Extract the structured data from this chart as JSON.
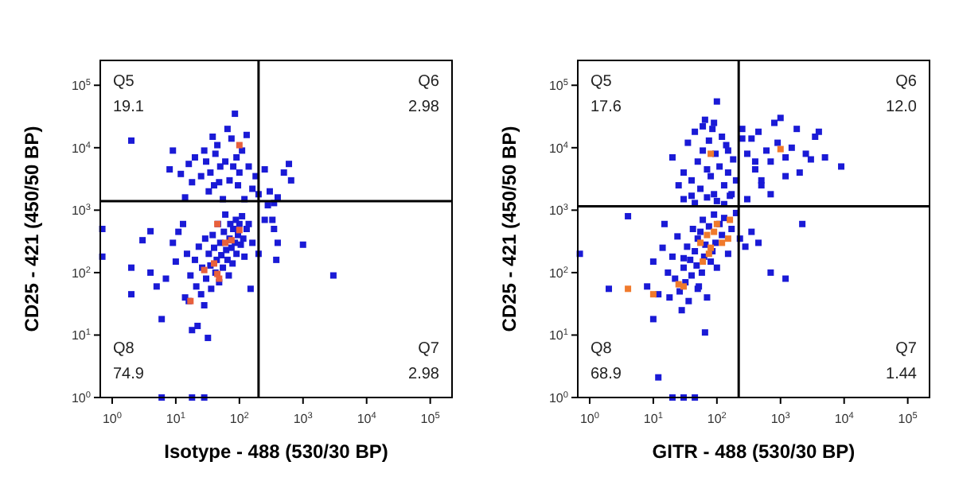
{
  "chart_data": [
    {
      "type": "scatter",
      "xlabel": "Isotype - 488 (530/30 BP)",
      "ylabel": "CD25 - 421 (450/50 BP)",
      "log": "xy",
      "marker": "square",
      "xlim": [
        0.65,
        220000
      ],
      "ylim": [
        1,
        250000
      ],
      "xticks": [
        {
          "value": 1,
          "label": "10$^{0}$"
        },
        {
          "value": 10,
          "label": "10$^{1}$"
        },
        {
          "value": 100,
          "label": "10$^{2}$"
        },
        {
          "value": 1000,
          "label": "10$^{3}$"
        },
        {
          "value": 10000,
          "label": "10$^{4}$"
        },
        {
          "value": 100000,
          "label": "10$^{5}$"
        }
      ],
      "yticks": [
        {
          "value": 1,
          "label": "10$^{0}$"
        },
        {
          "value": 10,
          "label": "10$^{1}$"
        },
        {
          "value": 100,
          "label": "10$^{2}$"
        },
        {
          "value": 1000,
          "label": "10$^{3}$"
        },
        {
          "value": 10000,
          "label": "10$^{4}$"
        },
        {
          "value": 100000,
          "label": "10$^{5}$"
        }
      ],
      "ref_lines": [
        {
          "axis": "x",
          "value": 200,
          "color": "#000000"
        },
        {
          "axis": "y",
          "value": 1400,
          "color": "#000000"
        }
      ],
      "annotations": [
        "Q5",
        "19.1",
        "Q6",
        "2.98",
        "Q8",
        "74.9",
        "Q7",
        "2.98"
      ],
      "series": [
        {
          "color": "#1a1ad6",
          "x": [
            2,
            9,
            8,
            12,
            14,
            16,
            18,
            20,
            25,
            28,
            30,
            33,
            35,
            38,
            40,
            42,
            45,
            48,
            50,
            55,
            60,
            65,
            70,
            75,
            80,
            85,
            90,
            95,
            100,
            110,
            120,
            130,
            140,
            160,
            180,
            200,
            250,
            300,
            350,
            400,
            500,
            600,
            650,
            280,
            330,
            0.7,
            0.7,
            2,
            2,
            3,
            4,
            4,
            5,
            6,
            7,
            9,
            10,
            11,
            13,
            14,
            15,
            16,
            17,
            18,
            20,
            21,
            22,
            23,
            25,
            26,
            28,
            29,
            30,
            32,
            33,
            35,
            36,
            38,
            40,
            42,
            44,
            46,
            48,
            50,
            52,
            55,
            57,
            60,
            62,
            65,
            68,
            70,
            72,
            75,
            78,
            80,
            85,
            88,
            90,
            95,
            100,
            105,
            110,
            115,
            120,
            130,
            140,
            150,
            160,
            200,
            250,
            350,
            380,
            400,
            1000,
            3000,
            6,
            18,
            28
          ],
          "values": [
            13000,
            9000,
            4500,
            3800,
            1600,
            5500,
            2800,
            7000,
            3500,
            9000,
            6000,
            2000,
            4000,
            15000,
            2500,
            8000,
            11000,
            2800,
            5000,
            1500,
            6000,
            20000,
            3000,
            14000,
            5000,
            35000,
            7000,
            2500,
            4000,
            9000,
            1500,
            16000,
            5000,
            2200,
            3500,
            1800,
            4500,
            2000,
            1300,
            1600,
            4000,
            5500,
            3000,
            1200,
            700,
            500,
            180,
            120,
            45,
            330,
            100,
            460,
            60,
            18,
            80,
            300,
            150,
            450,
            600,
            40,
            200,
            35,
            90,
            12,
            160,
            60,
            14,
            260,
            45,
            120,
            30,
            350,
            80,
            9,
            200,
            130,
            55,
            400,
            250,
            100,
            160,
            600,
            70,
            300,
            190,
            120,
            450,
            850,
            230,
            160,
            90,
            350,
            600,
            250,
            140,
            500,
            300,
            700,
            200,
            400,
            600,
            280,
            800,
            350,
            180,
            500,
            600,
            55,
            300,
            200,
            700,
            500,
            160,
            300,
            280,
            90,
            1,
            1,
            1
          ]
        },
        {
          "color": "#e8603c",
          "x": [
            45,
            60,
            75,
            100,
            40,
            45,
            48,
            28,
            17,
            100
          ],
          "values": [
            600,
            300,
            330,
            480,
            140,
            95,
            80,
            110,
            35,
            11000
          ]
        }
      ]
    },
    {
      "type": "scatter",
      "xlabel": "GITR - 488 (530/30 BP)",
      "ylabel": "CD25 - 421 (450/50 BP)",
      "log": "xy",
      "marker": "square",
      "xlim": [
        0.65,
        220000
      ],
      "ylim": [
        1,
        250000
      ],
      "xticks": [
        {
          "value": 1,
          "label": "10$^{0}$"
        },
        {
          "value": 10,
          "label": "10$^{1}$"
        },
        {
          "value": 100,
          "label": "10$^{2}$"
        },
        {
          "value": 1000,
          "label": "10$^{3}$"
        },
        {
          "value": 10000,
          "label": "10$^{4}$"
        },
        {
          "value": 100000,
          "label": "10$^{5}$"
        }
      ],
      "yticks": [
        {
          "value": 1,
          "label": "10$^{0}$"
        },
        {
          "value": 10,
          "label": "10$^{1}$"
        },
        {
          "value": 100,
          "label": "10$^{2}$"
        },
        {
          "value": 1000,
          "label": "10$^{3}$"
        },
        {
          "value": 10000,
          "label": "10$^{4}$"
        },
        {
          "value": 100000,
          "label": "10$^{5}$"
        }
      ],
      "ref_lines": [
        {
          "axis": "x",
          "value": 220,
          "color": "#000000"
        },
        {
          "axis": "y",
          "value": 1150,
          "color": "#000000"
        }
      ],
      "annotations": [
        "Q5",
        "17.6",
        "Q6",
        "12.0",
        "Q8",
        "68.9",
        "Q7",
        "1.44"
      ],
      "series": [
        {
          "color": "#1a1ad6",
          "x": [
            20,
            25,
            30,
            35,
            40,
            45,
            50,
            55,
            60,
            65,
            70,
            75,
            80,
            85,
            90,
            95,
            100,
            110,
            120,
            130,
            140,
            150,
            160,
            180,
            200,
            30,
            45,
            70,
            100,
            130,
            170,
            60,
            90,
            150,
            40,
            250,
            300,
            350,
            400,
            450,
            500,
            600,
            700,
            800,
            900,
            1000,
            1200,
            1500,
            1800,
            2000,
            2500,
            3000,
            3500,
            4000,
            5000,
            9000,
            300,
            500,
            700,
            1200,
            250,
            400,
            0.7,
            2,
            4,
            8,
            10,
            12,
            14,
            15,
            17,
            18,
            20,
            22,
            24,
            26,
            28,
            30,
            32,
            34,
            36,
            38,
            40,
            42,
            45,
            48,
            50,
            52,
            55,
            58,
            60,
            63,
            66,
            70,
            75,
            80,
            85,
            90,
            95,
            100,
            110,
            120,
            130,
            150,
            170,
            200,
            230,
            280,
            350,
            450,
            700,
            1200,
            2200,
            30,
            50,
            65,
            10,
            12,
            20,
            30,
            45
          ],
          "values": [
            7000,
            2500,
            4000,
            12000,
            3000,
            18000,
            6000,
            2200,
            9000,
            28000,
            4500,
            13000,
            3500,
            20000,
            1800,
            8000,
            55000,
            5000,
            15000,
            2500,
            11000,
            4000,
            1700,
            6500,
            3000,
            1500,
            1300,
            1600,
            1400,
            1250,
            1800,
            22000,
            25000,
            9000,
            1700,
            20000,
            8000,
            14000,
            4500,
            18000,
            3000,
            9000,
            6000,
            25000,
            12000,
            30000,
            7000,
            10000,
            20000,
            4000,
            8000,
            6500,
            15000,
            18000,
            7000,
            5000,
            1500,
            2500,
            1800,
            3500,
            14000,
            6000,
            200,
            55,
            800,
            60,
            150,
            45,
            250,
            600,
            100,
            40,
            180,
            80,
            380,
            50,
            25,
            120,
            70,
            260,
            35,
            160,
            90,
            500,
            220,
            130,
            350,
            60,
            450,
            100,
            700,
            180,
            280,
            40,
            550,
            150,
            220,
            850,
            300,
            120,
            600,
            400,
            750,
            200,
            500,
            900,
            350,
            260,
            450,
            300,
            100,
            80,
            600,
            170,
            55,
            11,
            18,
            2.1,
            1,
            1,
            1
          ]
        },
        {
          "color": "#f07a2c",
          "x": [
            4,
            10,
            25,
            30,
            55,
            60,
            70,
            75,
            80,
            90,
            100,
            120,
            150,
            160,
            80,
            1000
          ],
          "values": [
            55,
            45,
            65,
            60,
            300,
            150,
            400,
            200,
            250,
            450,
            600,
            300,
            350,
            700,
            8000,
            9500
          ]
        }
      ]
    }
  ]
}
